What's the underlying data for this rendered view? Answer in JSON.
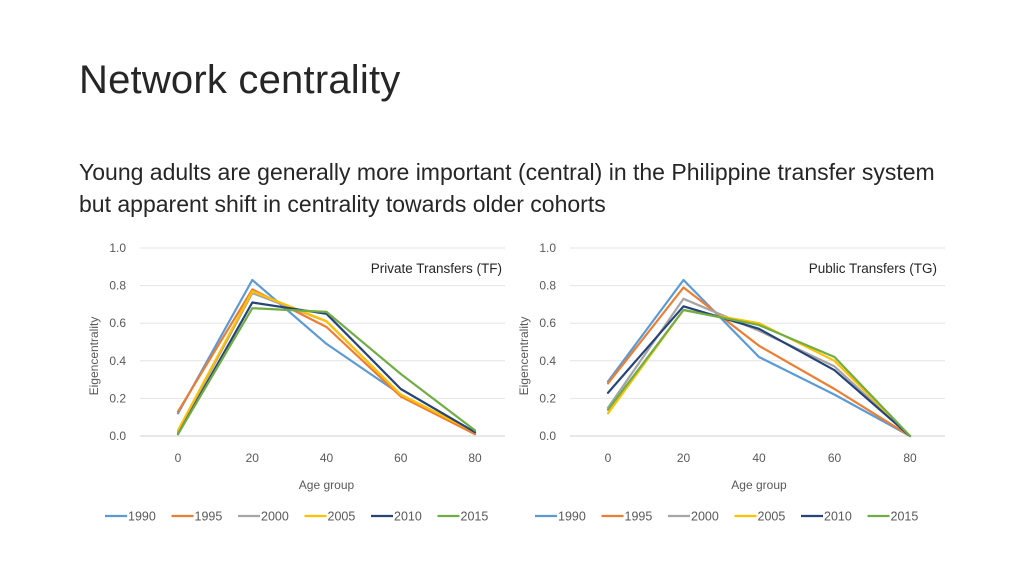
{
  "slide": {
    "title": "Network centrality",
    "subtitle": "Young adults are generally more important (central) in the Philippine transfer system but apparent shift in centrality towards older cohorts"
  },
  "chart_data": [
    {
      "type": "line",
      "title": "Private Transfers (TF)",
      "xlabel": "Age group",
      "ylabel": "Eigencentrality",
      "xlim": [
        0,
        80
      ],
      "ylim": [
        0,
        1.0
      ],
      "x_ticks": [
        "0",
        "20",
        "40",
        "60",
        "80"
      ],
      "y_ticks": [
        "0.0",
        "0.2",
        "0.4",
        "0.6",
        "0.8",
        "1.0"
      ],
      "grid": true,
      "legend_position": "bottom",
      "x": [
        0,
        20,
        40,
        60,
        80
      ],
      "series": [
        {
          "name": "1990",
          "color": "#5B9BD5",
          "values": [
            0.12,
            0.83,
            0.49,
            0.22,
            0.01
          ]
        },
        {
          "name": "1995",
          "color": "#ED7D31",
          "values": [
            0.13,
            0.78,
            0.58,
            0.21,
            0.01
          ]
        },
        {
          "name": "2000",
          "color": "#A5A5A5",
          "values": [
            0.02,
            0.76,
            0.61,
            0.22,
            0.02
          ]
        },
        {
          "name": "2005",
          "color": "#FFC000",
          "values": [
            0.03,
            0.77,
            0.61,
            0.22,
            0.02
          ]
        },
        {
          "name": "2010",
          "color": "#264478",
          "values": [
            0.01,
            0.71,
            0.65,
            0.25,
            0.02
          ]
        },
        {
          "name": "2015",
          "color": "#70AD47",
          "values": [
            0.01,
            0.68,
            0.66,
            0.33,
            0.03
          ]
        }
      ]
    },
    {
      "type": "line",
      "title": "Public Transfers (TG)",
      "xlabel": "Age group",
      "ylabel": "Eigencentrality",
      "xlim": [
        0,
        80
      ],
      "ylim": [
        0,
        1.0
      ],
      "x_ticks": [
        "0",
        "20",
        "40",
        "60",
        "80"
      ],
      "y_ticks": [
        "0.0",
        "0.2",
        "0.4",
        "0.6",
        "0.8",
        "1.0"
      ],
      "grid": true,
      "legend_position": "bottom",
      "x": [
        0,
        20,
        40,
        60,
        80
      ],
      "series": [
        {
          "name": "1990",
          "color": "#5B9BD5",
          "values": [
            0.29,
            0.83,
            0.42,
            0.22,
            0.0
          ]
        },
        {
          "name": "1995",
          "color": "#ED7D31",
          "values": [
            0.28,
            0.79,
            0.48,
            0.25,
            0.0
          ]
        },
        {
          "name": "2000",
          "color": "#A5A5A5",
          "values": [
            0.15,
            0.73,
            0.56,
            0.37,
            0.0
          ]
        },
        {
          "name": "2005",
          "color": "#FFC000",
          "values": [
            0.12,
            0.67,
            0.6,
            0.4,
            0.0
          ]
        },
        {
          "name": "2010",
          "color": "#264478",
          "values": [
            0.23,
            0.69,
            0.57,
            0.35,
            0.0
          ]
        },
        {
          "name": "2015",
          "color": "#70AD47",
          "values": [
            0.14,
            0.67,
            0.59,
            0.42,
            0.0
          ]
        }
      ]
    }
  ]
}
